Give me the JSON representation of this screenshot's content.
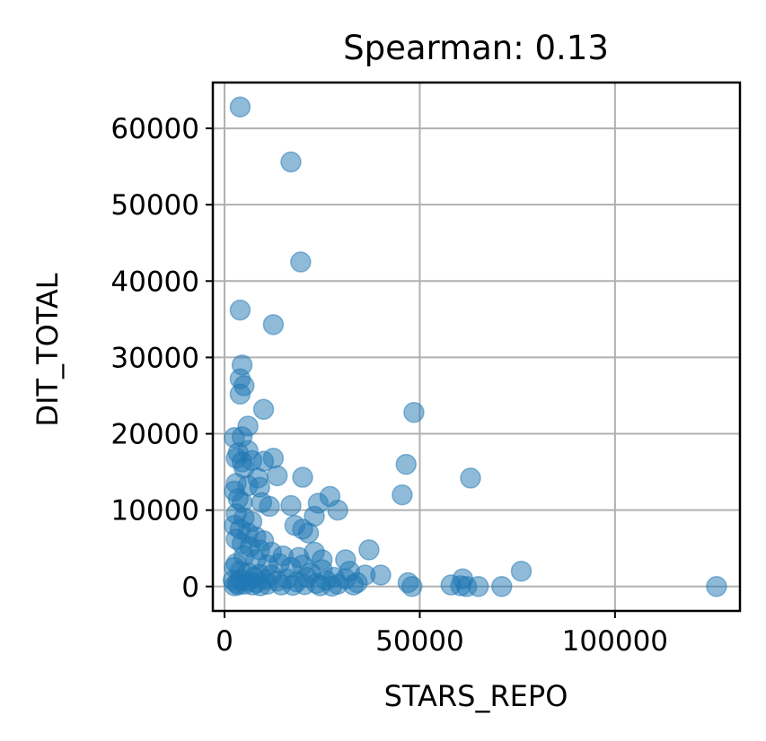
{
  "colors": {
    "point": "#1f77b4",
    "grid": "#b0b0b0",
    "axes": "#000000"
  },
  "chart_data": {
    "type": "scatter",
    "title": "Spearman: 0.13",
    "xlabel": "STARS_REPO",
    "ylabel": "DIT_TOTAL",
    "xlim": [
      -3000,
      132000
    ],
    "ylim": [
      -3200,
      66000
    ],
    "xticks": [
      0,
      50000,
      100000
    ],
    "xtick_labels": [
      "0",
      "50000",
      "100000"
    ],
    "yticks": [
      0,
      10000,
      20000,
      30000,
      40000,
      50000,
      60000
    ],
    "ytick_labels": [
      "0",
      "10000",
      "20000",
      "30000",
      "40000",
      "50000",
      "60000"
    ],
    "grid": true,
    "marker_alpha": 0.5,
    "points": [
      [
        4000,
        62800
      ],
      [
        17000,
        55600
      ],
      [
        19500,
        42500
      ],
      [
        4000,
        36200
      ],
      [
        12500,
        34300
      ],
      [
        4500,
        29000
      ],
      [
        4000,
        27200
      ],
      [
        5000,
        26300
      ],
      [
        4000,
        25200
      ],
      [
        10000,
        23200
      ],
      [
        6000,
        21000
      ],
      [
        2500,
        19500
      ],
      [
        4500,
        19600
      ],
      [
        3500,
        17500
      ],
      [
        6000,
        17800
      ],
      [
        3000,
        16800
      ],
      [
        4500,
        16300
      ],
      [
        7000,
        16500
      ],
      [
        10000,
        16400
      ],
      [
        12500,
        16800
      ],
      [
        5000,
        15500
      ],
      [
        8500,
        14200
      ],
      [
        13500,
        14500
      ],
      [
        20000,
        14300
      ],
      [
        3000,
        13500
      ],
      [
        6000,
        13200
      ],
      [
        9000,
        13000
      ],
      [
        2500,
        12500
      ],
      [
        3500,
        11500
      ],
      [
        4500,
        11000
      ],
      [
        9500,
        11000
      ],
      [
        11500,
        10500
      ],
      [
        17000,
        10600
      ],
      [
        24000,
        10900
      ],
      [
        27000,
        11800
      ],
      [
        29000,
        10000
      ],
      [
        23000,
        9200
      ],
      [
        18000,
        8000
      ],
      [
        20000,
        7500
      ],
      [
        21500,
        7000
      ],
      [
        3000,
        9500
      ],
      [
        5000,
        9000
      ],
      [
        7000,
        8500
      ],
      [
        2500,
        8000
      ],
      [
        4000,
        7500
      ],
      [
        6000,
        7000
      ],
      [
        8000,
        6500
      ],
      [
        10000,
        6000
      ],
      [
        3000,
        6200
      ],
      [
        4500,
        5600
      ],
      [
        6500,
        5200
      ],
      [
        9000,
        4800
      ],
      [
        12000,
        4500
      ],
      [
        15000,
        4000
      ],
      [
        19000,
        3800
      ],
      [
        23000,
        4500
      ],
      [
        25000,
        3500
      ],
      [
        31000,
        3500
      ],
      [
        37000,
        4800
      ],
      [
        32000,
        2000
      ],
      [
        36000,
        1500
      ],
      [
        40000,
        1500
      ],
      [
        34000,
        500
      ],
      [
        31000,
        1000
      ],
      [
        28000,
        1200
      ],
      [
        25000,
        2200
      ],
      [
        22000,
        1800
      ],
      [
        20000,
        2800
      ],
      [
        17000,
        2500
      ],
      [
        14000,
        3000
      ],
      [
        11000,
        2800
      ],
      [
        8000,
        3500
      ],
      [
        5000,
        4000
      ],
      [
        3000,
        3000
      ],
      [
        2500,
        2500
      ],
      [
        4000,
        2000
      ],
      [
        6000,
        1800
      ],
      [
        7500,
        1200
      ],
      [
        9000,
        1600
      ],
      [
        10500,
        900
      ],
      [
        12000,
        1500
      ],
      [
        13500,
        700
      ],
      [
        16000,
        1000
      ],
      [
        18500,
        600
      ],
      [
        21000,
        1200
      ],
      [
        23500,
        400
      ],
      [
        26000,
        800
      ],
      [
        29000,
        300
      ],
      [
        33000,
        200
      ],
      [
        2200,
        800
      ],
      [
        3200,
        400
      ],
      [
        4200,
        900
      ],
      [
        5200,
        300
      ],
      [
        6200,
        700
      ],
      [
        7200,
        200
      ],
      [
        8200,
        500
      ],
      [
        9200,
        100
      ],
      [
        2500,
        100
      ],
      [
        3500,
        200
      ],
      [
        11000,
        300
      ],
      [
        14500,
        200
      ],
      [
        17500,
        150
      ],
      [
        20500,
        250
      ],
      [
        24500,
        100
      ],
      [
        27500,
        50
      ],
      [
        45500,
        12000
      ],
      [
        46500,
        16000
      ],
      [
        48500,
        22800
      ],
      [
        63000,
        14200
      ],
      [
        76000,
        2000
      ],
      [
        61000,
        1000
      ],
      [
        47000,
        500
      ],
      [
        48000,
        0
      ],
      [
        58000,
        200
      ],
      [
        60500,
        100
      ],
      [
        62000,
        0
      ],
      [
        65000,
        0
      ],
      [
        71000,
        0
      ],
      [
        126000,
        0
      ]
    ]
  }
}
